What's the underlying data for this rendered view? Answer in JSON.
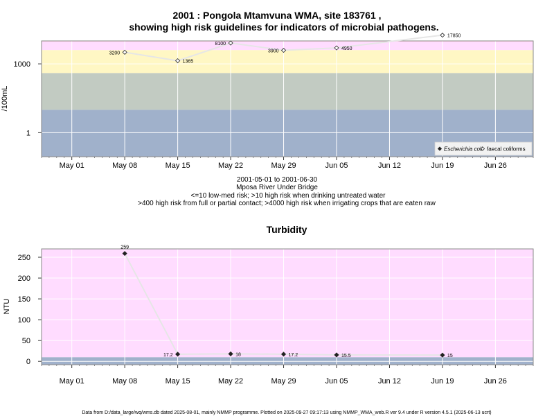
{
  "title_line1": "2001 : Pongola Mtamvuna WMA, site 183761 ,",
  "title_line2": "showing high risk guidelines for indicators of microbial pathogens.",
  "x_ticks": [
    "May 01",
    "May 08",
    "May 15",
    "May 22",
    "May 29",
    "Jun 05",
    "Jun 12",
    "Jun 19",
    "Jun 26"
  ],
  "info": {
    "date_range": "2001-05-01 to 2001-06-30",
    "site_name": "Mposa River Under Bridge",
    "guideline1": "<=10 low-med risk; >10 high risk when drinking untreated water",
    "guideline2": ">400 high risk from full or partial contact; >4000 high risk when irrigating crops that are eaten raw"
  },
  "footer": "Data from D:/data_large/wq/wms.db dated 2025-08-01, mainly NMMP programme. Plotted on 2025-09-27 09:17:13 using NMMP_WMA_web.R ver 9.4 under R version 4.5.1 (2025-06-13 ucrt)",
  "colors": {
    "band_blue": "#a0b1cb",
    "band_grey": "#c2cbc2",
    "band_yellow": "#fff7c4",
    "band_pink": "#ffdcff",
    "band_red": "#ffb0c0",
    "line": "#e6e6e6",
    "marker": "#222222"
  },
  "chart_data": [
    {
      "type": "line",
      "title": "",
      "xlabel": "",
      "ylabel": "/100mL",
      "y_scale": "log10",
      "ylim": [
        0.09,
        10000
      ],
      "y_ticks": [
        1,
        1000
      ],
      "y_tick_labels": [
        "1",
        "1000"
      ],
      "xlim": [
        "2001-04-27",
        "2001-07-01"
      ],
      "x_tick_dates": [
        "2001-05-01",
        "2001-05-08",
        "2001-05-15",
        "2001-05-22",
        "2001-05-29",
        "2001-06-05",
        "2001-06-12",
        "2001-06-19",
        "2001-06-26"
      ],
      "risk_bands": [
        {
          "from": 0.09,
          "to": 10,
          "color": "#a0b1cb"
        },
        {
          "from": 10,
          "to": 400,
          "color": "#c2cbc2"
        },
        {
          "from": 400,
          "to": 4000,
          "color": "#fff7c4"
        },
        {
          "from": 4000,
          "to": 9500,
          "color": "#ffdcff"
        },
        {
          "from": 9500,
          "to": 10000,
          "color": "#ffb0c0"
        }
      ],
      "legend_position": "bottom-right",
      "legend": [
        {
          "name": "Escherichia coli",
          "marker": "filled-diamond"
        },
        {
          "name": "faecal coliforms",
          "marker": "open-diamond"
        }
      ],
      "series": [
        {
          "name": "faecal coliforms",
          "marker": "open-diamond",
          "x": [
            "2001-05-08",
            "2001-05-15",
            "2001-05-22",
            "2001-05-29",
            "2001-06-05",
            "2001-06-19"
          ],
          "values": [
            3200,
            1365,
            8100,
            3900,
            4950,
            17850
          ],
          "labels": [
            "3200",
            "1365",
            "8100",
            "3900",
            "4950",
            "17850"
          ],
          "label_side": [
            "left",
            "right",
            "left",
            "left",
            "right",
            "right"
          ]
        }
      ]
    },
    {
      "type": "line",
      "title": "Turbidity",
      "xlabel": "",
      "ylabel": "NTU",
      "ylim": [
        -8,
        270
      ],
      "y_ticks": [
        0,
        50,
        100,
        150,
        200,
        250
      ],
      "xlim": [
        "2001-04-27",
        "2001-07-01"
      ],
      "x_tick_dates": [
        "2001-05-01",
        "2001-05-08",
        "2001-05-15",
        "2001-05-22",
        "2001-05-29",
        "2001-06-05",
        "2001-06-12",
        "2001-06-19",
        "2001-06-26"
      ],
      "risk_bands": [
        {
          "from": -8,
          "to": 10,
          "color": "#a0b1cb"
        },
        {
          "from": 10,
          "to": 270,
          "color": "#ffdcff"
        }
      ],
      "series": [
        {
          "name": "",
          "marker": "filled-diamond",
          "x": [
            "2001-05-08",
            "2001-05-15",
            "2001-05-22",
            "2001-05-29",
            "2001-06-05",
            "2001-06-19"
          ],
          "values": [
            259,
            17.2,
            18,
            17.2,
            15.5,
            15
          ],
          "labels": [
            "259",
            "17.2",
            "18",
            "17.2",
            "15.5",
            "15"
          ],
          "label_side": [
            "above",
            "left",
            "right",
            "right",
            "right",
            "right"
          ]
        }
      ]
    }
  ]
}
